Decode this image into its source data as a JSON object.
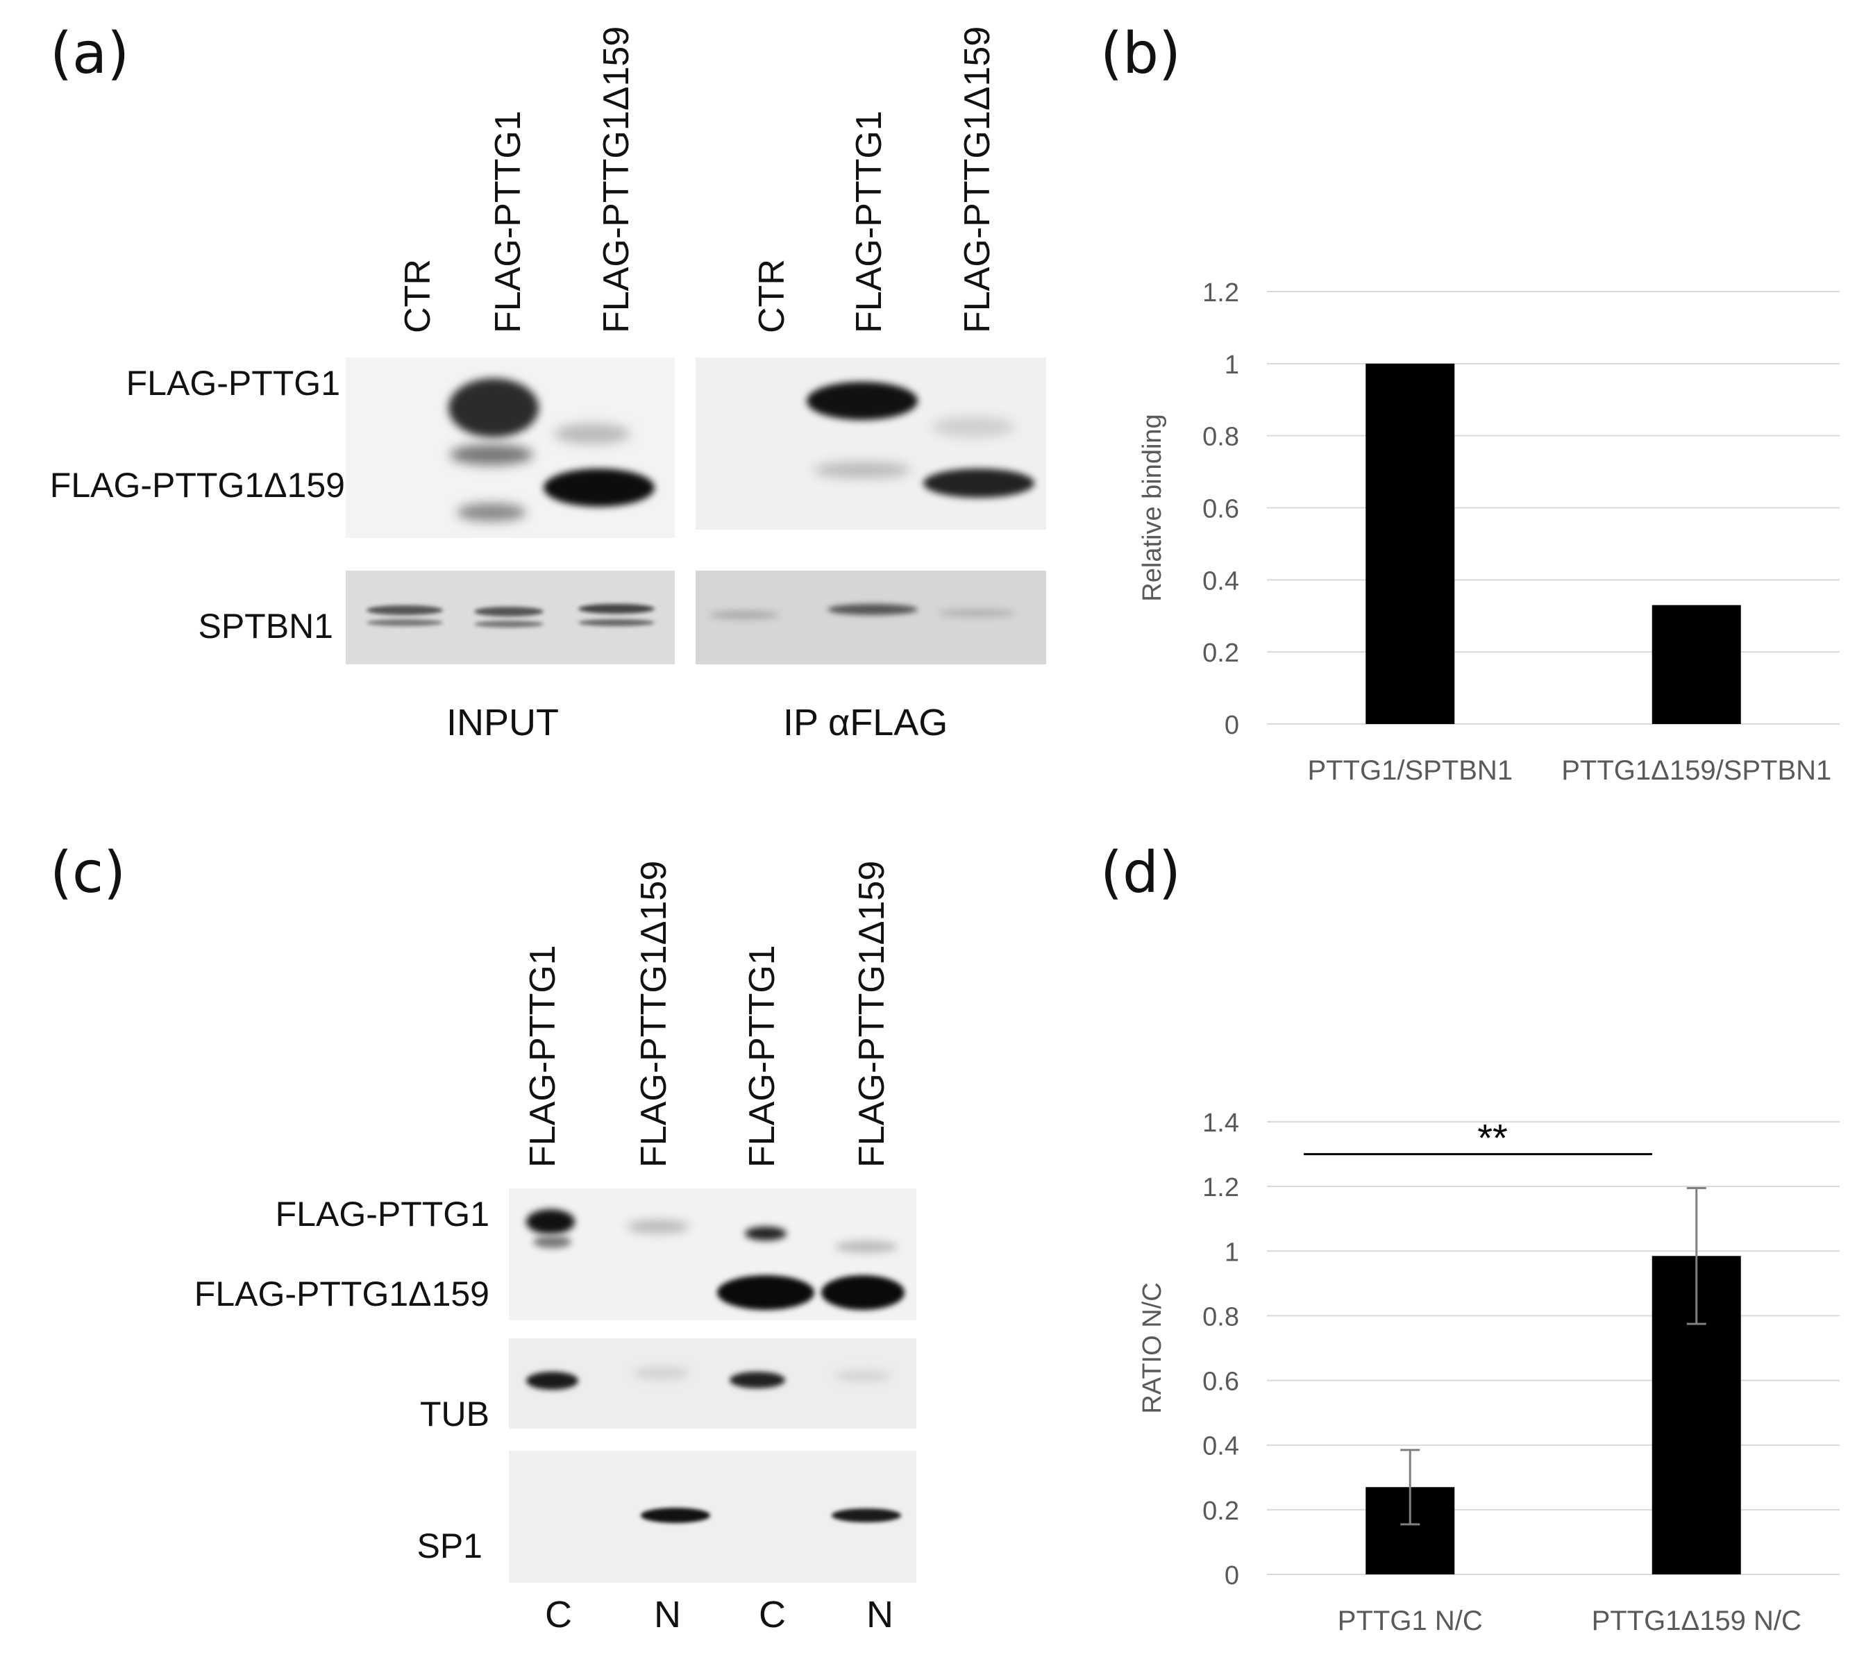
{
  "panels": {
    "a": {
      "letter": "(a)",
      "lane_labels": [
        "CTR",
        "FLAG-PTTG1",
        "FLAG-PTTG1Δ159",
        "CTR",
        "FLAG-PTTG1",
        "FLAG-PTTG1Δ159"
      ],
      "row_labels": [
        "FLAG-PTTG1",
        "FLAG-PTTG1Δ159",
        "SPTBN1"
      ],
      "group_labels": [
        "INPUT",
        "IP αFLAG"
      ]
    },
    "b": {
      "letter": "(b)"
    },
    "c": {
      "letter": "(c)",
      "lane_labels": [
        "FLAG-PTTG1",
        "FLAG-PTTG1Δ159",
        "FLAG-PTTG1",
        "FLAG-PTTG1Δ159"
      ],
      "row_labels": [
        "FLAG-PTTG1",
        "FLAG-PTTG1Δ159",
        "TUB",
        "SP1"
      ],
      "fraction_labels": [
        "C",
        "N",
        "C",
        "N"
      ]
    },
    "d": {
      "letter": "(d)"
    }
  },
  "chart_data": [
    {
      "type": "bar",
      "categories": [
        "PTTG1/SPTBN1",
        "PTTG1Δ159/SPTBN1"
      ],
      "values": [
        1.0,
        0.33
      ],
      "ylabel": "Relative binding",
      "ylim": [
        0,
        1.2
      ],
      "yticks": [
        "0",
        "0.2",
        "0.4",
        "0.6",
        "0.8",
        "1",
        "1.2"
      ],
      "grid": true,
      "bar_color": "#000000"
    },
    {
      "type": "bar",
      "categories": [
        "PTTG1 N/C",
        "PTTG1Δ159 N/C"
      ],
      "values": [
        0.27,
        0.985
      ],
      "errors": [
        0.115,
        0.21
      ],
      "ylabel": "RATIO N/C",
      "ylim": [
        0,
        1.4
      ],
      "yticks": [
        "0",
        "0.2",
        "0.4",
        "0.6",
        "0.8",
        "1",
        "1.2",
        "1.4"
      ],
      "grid": true,
      "significance": "**",
      "bar_color": "#000000"
    }
  ]
}
